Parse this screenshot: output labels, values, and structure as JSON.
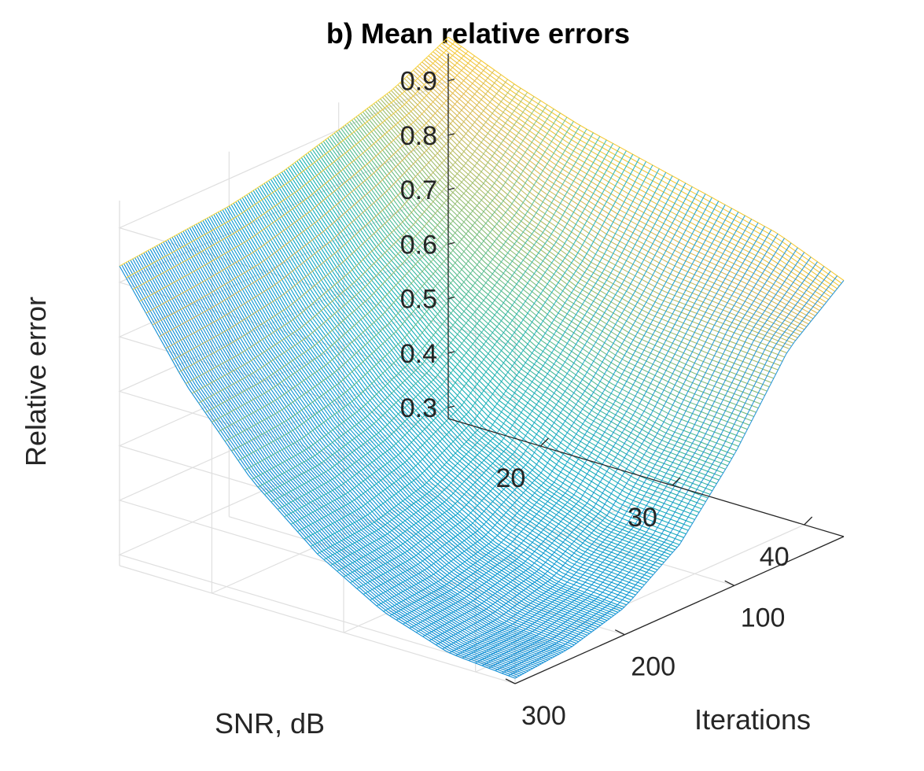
{
  "chart_data": {
    "type": "surface",
    "title": "b) Mean relative errors",
    "xlabel": "SNR, dB",
    "ylabel": "Iterations",
    "zlabel": "Relative error",
    "xlim": [
      13,
      43
    ],
    "ylim": [
      0,
      300
    ],
    "zlim": [
      0.28,
      0.95
    ],
    "xticks": [
      20,
      30,
      40
    ],
    "yticks": [
      100,
      200,
      300
    ],
    "zticks": [
      0.3,
      0.4,
      0.5,
      0.6,
      0.7,
      0.8,
      0.9
    ],
    "grid": true,
    "colormap": "parula",
    "samples": {
      "snr_db": [
        13,
        18,
        23,
        28,
        33,
        38,
        43
      ],
      "iterations": [
        0,
        50,
        100,
        150,
        200,
        250,
        300
      ],
      "relative_error": [
        [
          0.98,
          0.93,
          0.89,
          0.86,
          0.83,
          0.8,
          0.75
        ],
        [
          0.93,
          0.84,
          0.77,
          0.72,
          0.69,
          0.68,
          0.67
        ],
        [
          0.9,
          0.77,
          0.68,
          0.61,
          0.56,
          0.53,
          0.52
        ],
        [
          0.87,
          0.72,
          0.6,
          0.51,
          0.45,
          0.41,
          0.4
        ],
        [
          0.85,
          0.68,
          0.55,
          0.45,
          0.38,
          0.34,
          0.33
        ],
        [
          0.84,
          0.66,
          0.52,
          0.42,
          0.35,
          0.31,
          0.3
        ],
        [
          0.83,
          0.65,
          0.51,
          0.41,
          0.34,
          0.3,
          0.29
        ]
      ]
    }
  }
}
